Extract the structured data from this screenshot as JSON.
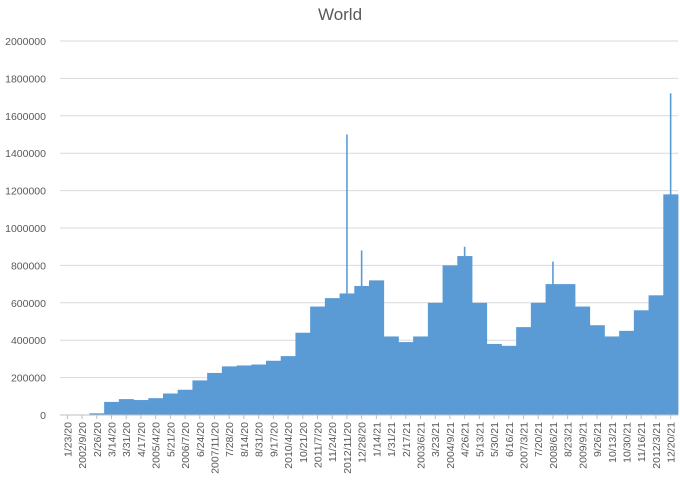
{
  "chart_data": {
    "type": "bar",
    "title": "World",
    "xlabel": "",
    "ylabel": "",
    "ylim": [
      0,
      2000000
    ],
    "yticks": [
      "0",
      "200000",
      "400000",
      "600000",
      "800000",
      "1000000",
      "1200000",
      "1400000",
      "1600000",
      "1800000",
      "2000000"
    ],
    "categories": [
      "1/23/20",
      "2002/9/20",
      "2/26/20",
      "3/14/20",
      "3/31/20",
      "4/17/20",
      "2005/4/20",
      "5/21/20",
      "2006/7/20",
      "6/24/20",
      "2007/11/20",
      "7/28/20",
      "8/14/20",
      "8/31/20",
      "9/17/20",
      "2010/4/20",
      "10/21/20",
      "2011/7/20",
      "11/24/20",
      "2012/11/20",
      "12/28/20",
      "1/14/21",
      "1/31/21",
      "2/17/21",
      "2003/6/21",
      "3/23/21",
      "2004/9/21",
      "4/26/21",
      "5/13/21",
      "5/30/21",
      "6/16/21",
      "2007/3/21",
      "7/20/21",
      "2008/6/21",
      "8/23/21",
      "2009/9/21",
      "9/26/21",
      "10/13/21",
      "10/30/21",
      "11/16/21",
      "2012/3/21",
      "12/20/21"
    ],
    "series": [
      {
        "values": [
          1000,
          2000,
          9000,
          70000,
          85000,
          80000,
          90000,
          115000,
          135000,
          185000,
          225000,
          260000,
          265000,
          270000,
          290000,
          315000,
          440000,
          580000,
          625000,
          650000,
          690000,
          720000,
          420000,
          390000,
          420000,
          600000,
          800000,
          850000,
          600000,
          380000,
          370000,
          470000,
          600000,
          700000,
          700000,
          580000,
          480000,
          420000,
          450000,
          560000,
          640000,
          1180000
        ]
      }
    ],
    "annotations": [
      {
        "x": "2012/11/20",
        "y": 1500000
      },
      {
        "x": "12/28/20",
        "y": 880000
      },
      {
        "x": "4/26/21",
        "y": 900000
      },
      {
        "x": "2008/6/21",
        "y": 820000
      },
      {
        "x": "12/20/21",
        "y": 1720000
      }
    ],
    "color": "#5b9bd5",
    "grid": true,
    "legend": "none"
  }
}
